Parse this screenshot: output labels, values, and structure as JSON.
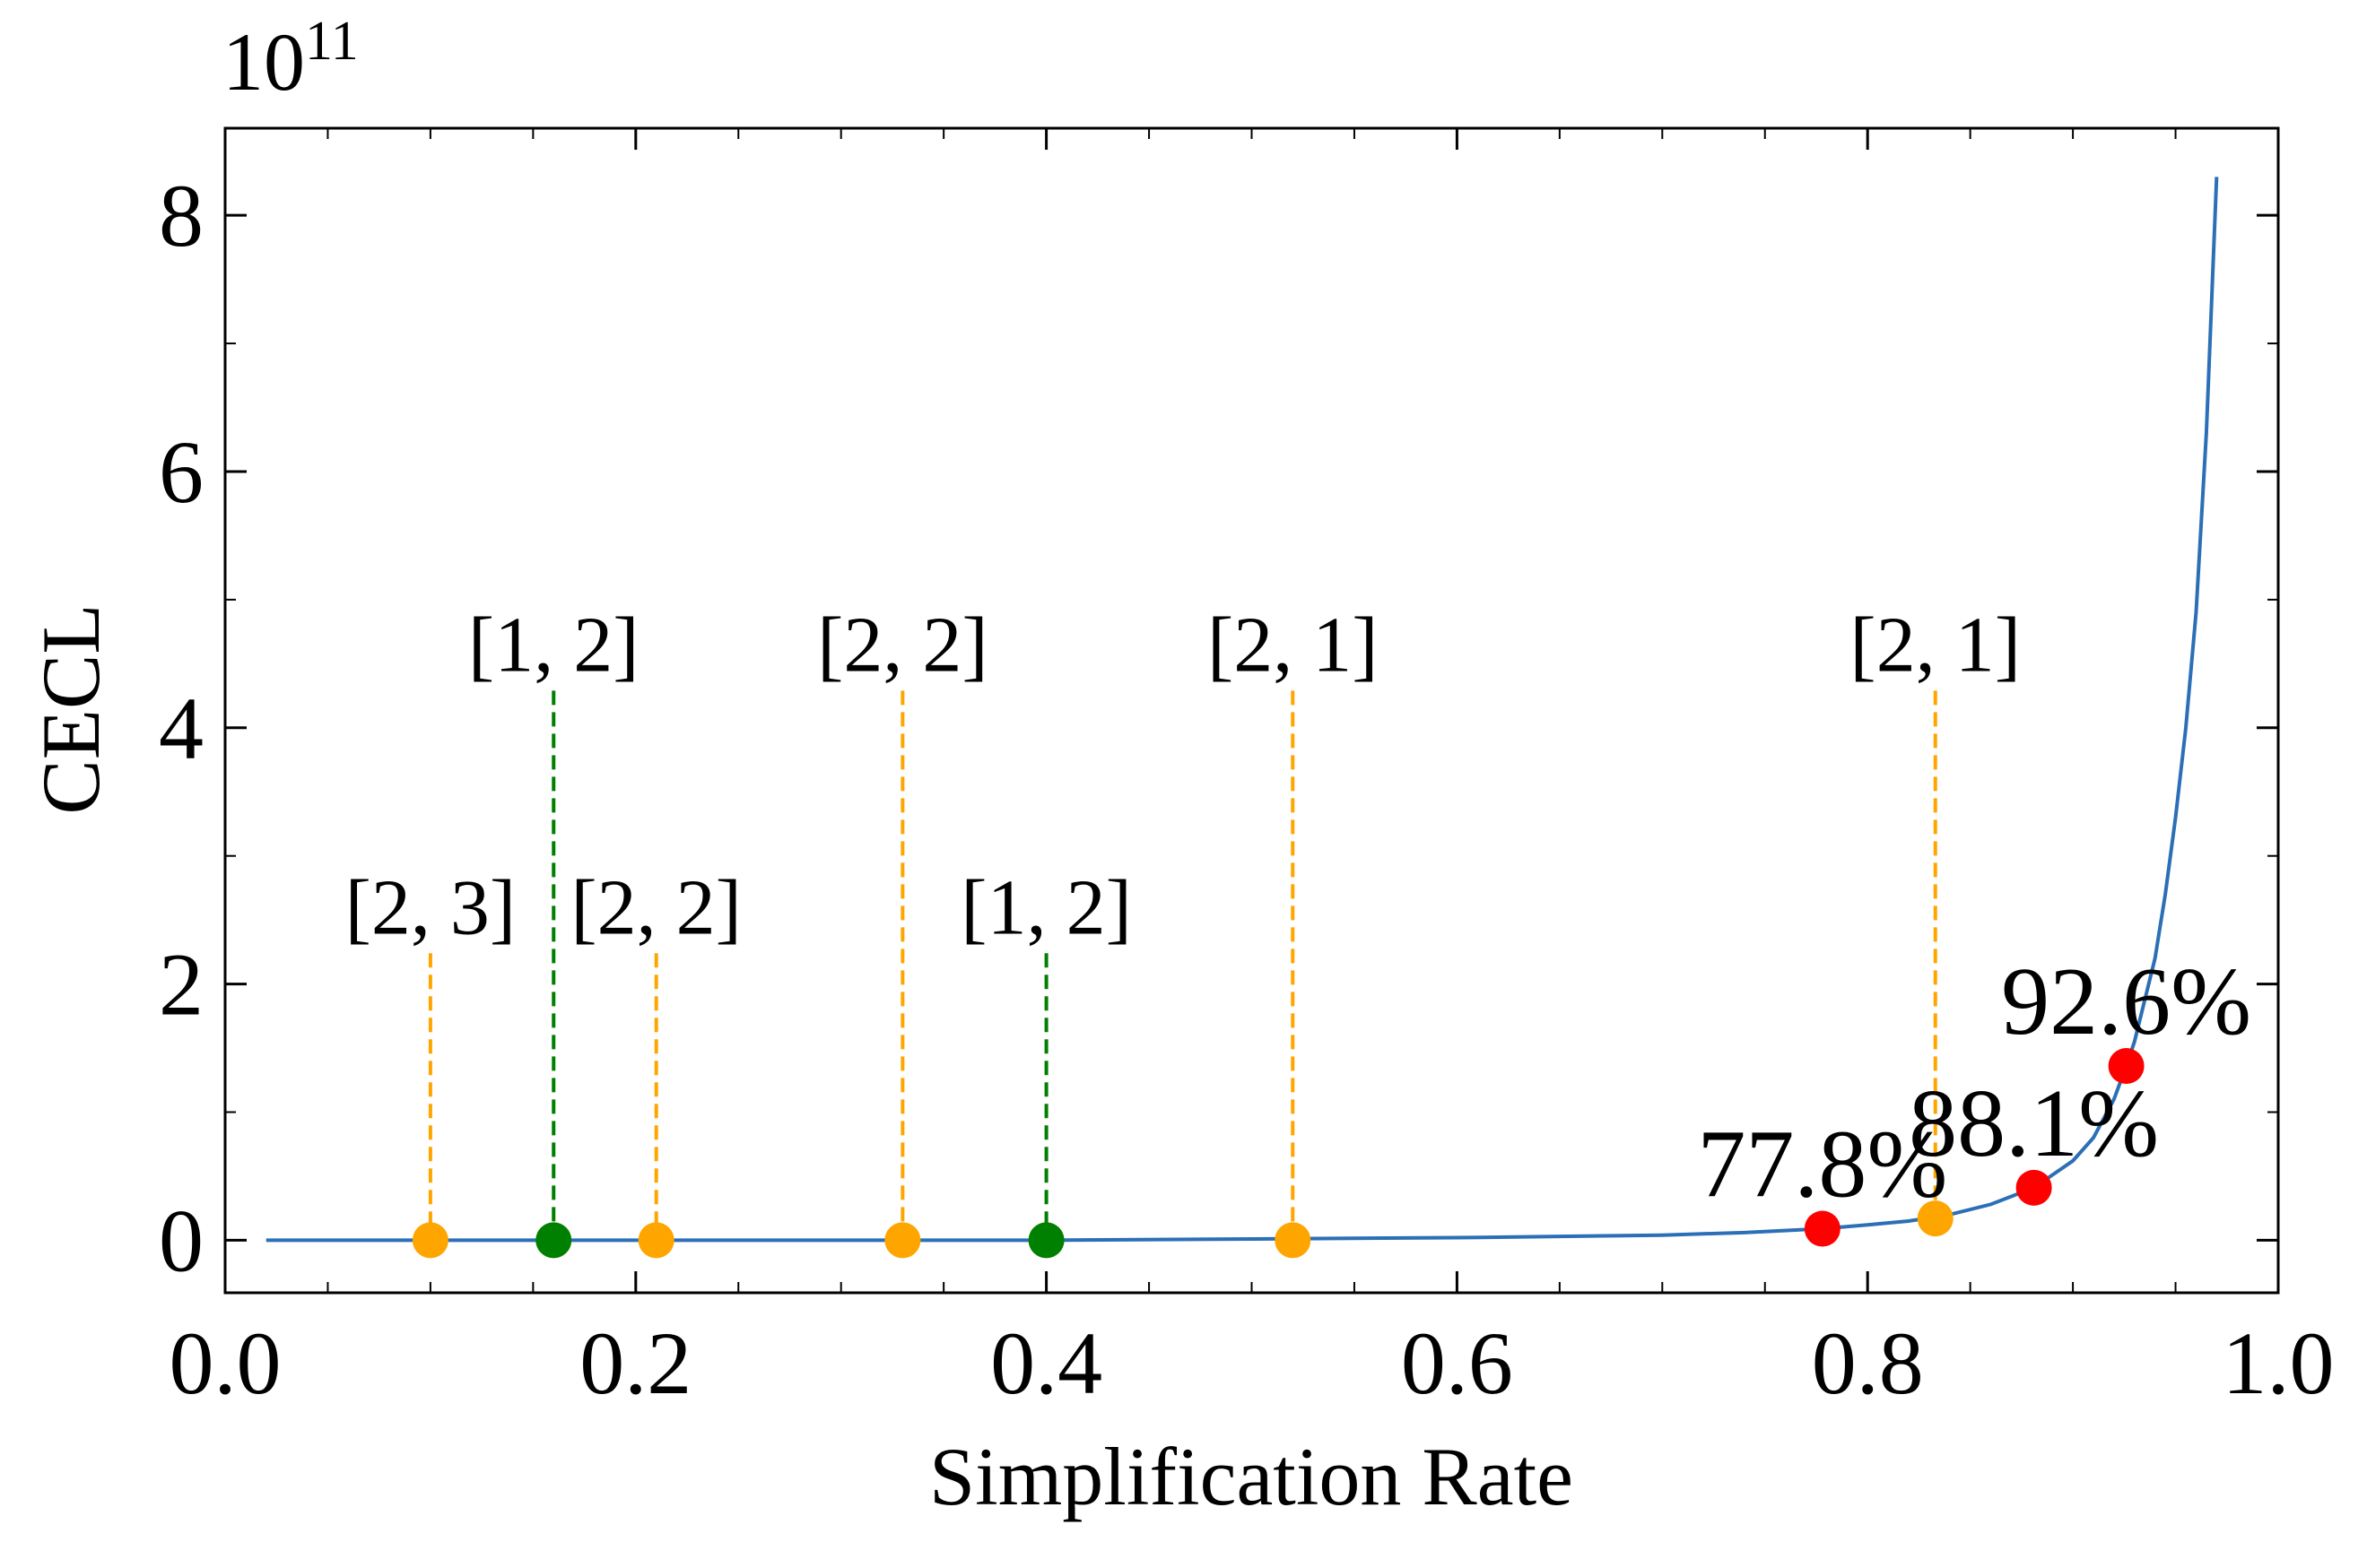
{
  "chart_data": {
    "type": "line",
    "xlabel": "Simplification Rate",
    "ylabel": "CECL",
    "y_offset": {
      "base": "10",
      "exponent": "11"
    },
    "xlim": [
      0,
      1
    ],
    "ylim": [
      -0.41,
      8.68
    ],
    "xticks": [
      {
        "value": 0,
        "label": "0.0"
      },
      0.2,
      0.4,
      0.6,
      0.8,
      {
        "value": 1,
        "label": "1.0"
      }
    ],
    "yticks": [
      0,
      2,
      4,
      6,
      8
    ],
    "xminorticks": [
      0.05,
      0.1,
      0.15,
      0.25,
      0.3,
      0.35,
      0.45,
      0.5,
      0.55,
      0.65,
      0.7,
      0.75,
      0.85,
      0.9,
      0.95
    ],
    "yminorticks": [
      1,
      3,
      5,
      7
    ],
    "series": [
      {
        "color": "#2b6fb6",
        "x": [
          0.02,
          0.1,
          0.2,
          0.3,
          0.4,
          0.5,
          0.6,
          0.65,
          0.7,
          0.74,
          0.778,
          0.8,
          0.82,
          0.84,
          0.86,
          0.881,
          0.9,
          0.91,
          0.92,
          0.926,
          0.93,
          0.94,
          0.945,
          0.95,
          0.955,
          0.96,
          0.965,
          0.97
        ],
        "values": [
          0,
          0,
          0,
          0,
          0,
          0.01,
          0.02,
          0.03,
          0.04,
          0.06,
          0.09,
          0.12,
          0.15,
          0.2,
          0.28,
          0.41,
          0.62,
          0.8,
          1.1,
          1.36,
          1.55,
          2.2,
          2.7,
          3.3,
          4.0,
          4.9,
          6.3,
          8.3
        ]
      },
      {
        "color": "#ffa500",
        "x": [
          0.1,
          0.21,
          0.33,
          0.52,
          0.833
        ],
        "values": [
          0,
          0,
          0,
          0,
          0.17
        ],
        "labels": [
          "[2, 3]",
          "[2, 2]",
          "[2, 2]",
          "[2, 1]",
          "[2, 1]"
        ],
        "label_y": [
          2.24,
          2.24,
          4.29,
          4.29,
          4.29
        ]
      },
      {
        "color": "#008000",
        "x": [
          0.16,
          0.4
        ],
        "values": [
          0,
          0
        ],
        "labels": [
          "[1, 2]",
          "[1, 2]"
        ],
        "label_y": [
          4.29,
          2.24
        ]
      },
      {
        "color": "#ff0000",
        "x": [
          0.778,
          0.881,
          0.926
        ],
        "values": [
          0.09,
          0.41,
          1.36
        ],
        "x_labels": [
          "77.8%",
          "88.1%",
          "92.6%"
        ]
      }
    ]
  }
}
